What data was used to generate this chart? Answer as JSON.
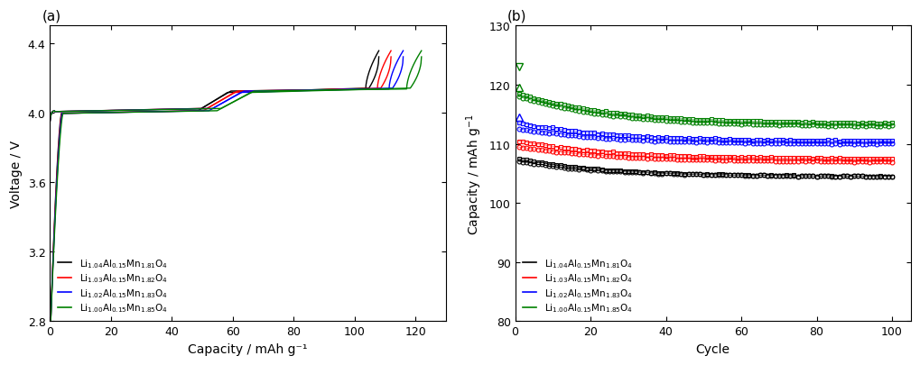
{
  "panel_a": {
    "xlabel": "Capacity / mAh g⁻¹",
    "ylabel": "Voltage / V",
    "xlim": [
      0,
      130
    ],
    "ylim": [
      2.8,
      4.5
    ],
    "yticks": [
      2.8,
      3.2,
      3.6,
      4.0,
      4.4
    ],
    "xticks": [
      0,
      20,
      40,
      60,
      80,
      100,
      120
    ],
    "colors": [
      "black",
      "red",
      "blue",
      "green"
    ],
    "labels": [
      [
        "Li$_{1.04}$Al$_{0.15}$Mn$_{1.81}$O$_4$",
        "black"
      ],
      [
        "Li$_{1.03}$Al$_{0.15}$Mn$_{1.82}$O$_4$",
        "red"
      ],
      [
        "Li$_{1.02}$Al$_{0.15}$Mn$_{1.83}$O$_4$",
        "blue"
      ],
      [
        "Li$_{1.00}$Al$_{0.15}$Mn$_{1.85}$O$_4$",
        "green"
      ]
    ],
    "cap_maxes": [
      108,
      112,
      116,
      122
    ]
  },
  "panel_b": {
    "xlabel": "Cycle",
    "ylabel": "Capacity / mAh g$^{-1}$",
    "xlim": [
      0,
      105
    ],
    "ylim": [
      80,
      130
    ],
    "yticks": [
      80,
      90,
      100,
      110,
      120,
      130
    ],
    "xticks": [
      0,
      20,
      40,
      60,
      80,
      100
    ],
    "colors": [
      "black",
      "red",
      "blue",
      "green"
    ],
    "labels": [
      [
        "Li$_{1.04}$Al$_{0.15}$Mn$_{1.81}$O$_4$",
        "black"
      ],
      [
        "Li$_{1.03}$Al$_{0.15}$Mn$_{1.82}$O$_4$",
        "red"
      ],
      [
        "Li$_{1.02}$Al$_{0.15}$Mn$_{1.83}$O$_4$",
        "blue"
      ],
      [
        "Li$_{1.00}$Al$_{0.15}$Mn$_{1.85}$O$_4$",
        "green"
      ]
    ],
    "series": [
      {
        "chg_s": 107.5,
        "chg_e": 104.5,
        "dis_s": 107.0,
        "dis_e": 104.5,
        "outlier_chg": null,
        "outlier_dis": null
      },
      {
        "chg_s": 110.5,
        "chg_e": 107.5,
        "dis_s": 109.5,
        "dis_e": 107.0,
        "outlier_chg": null,
        "outlier_dis": null
      },
      {
        "chg_s": 113.5,
        "chg_e": 110.5,
        "dis_s": 112.5,
        "dis_e": 110.0,
        "outlier_chg": null,
        "outlier_dis": 114.5
      },
      {
        "chg_s": 118.5,
        "chg_e": 113.5,
        "dis_s": 118.0,
        "dis_e": 113.0,
        "outlier_chg": 123.0,
        "outlier_dis": 119.5
      }
    ]
  }
}
